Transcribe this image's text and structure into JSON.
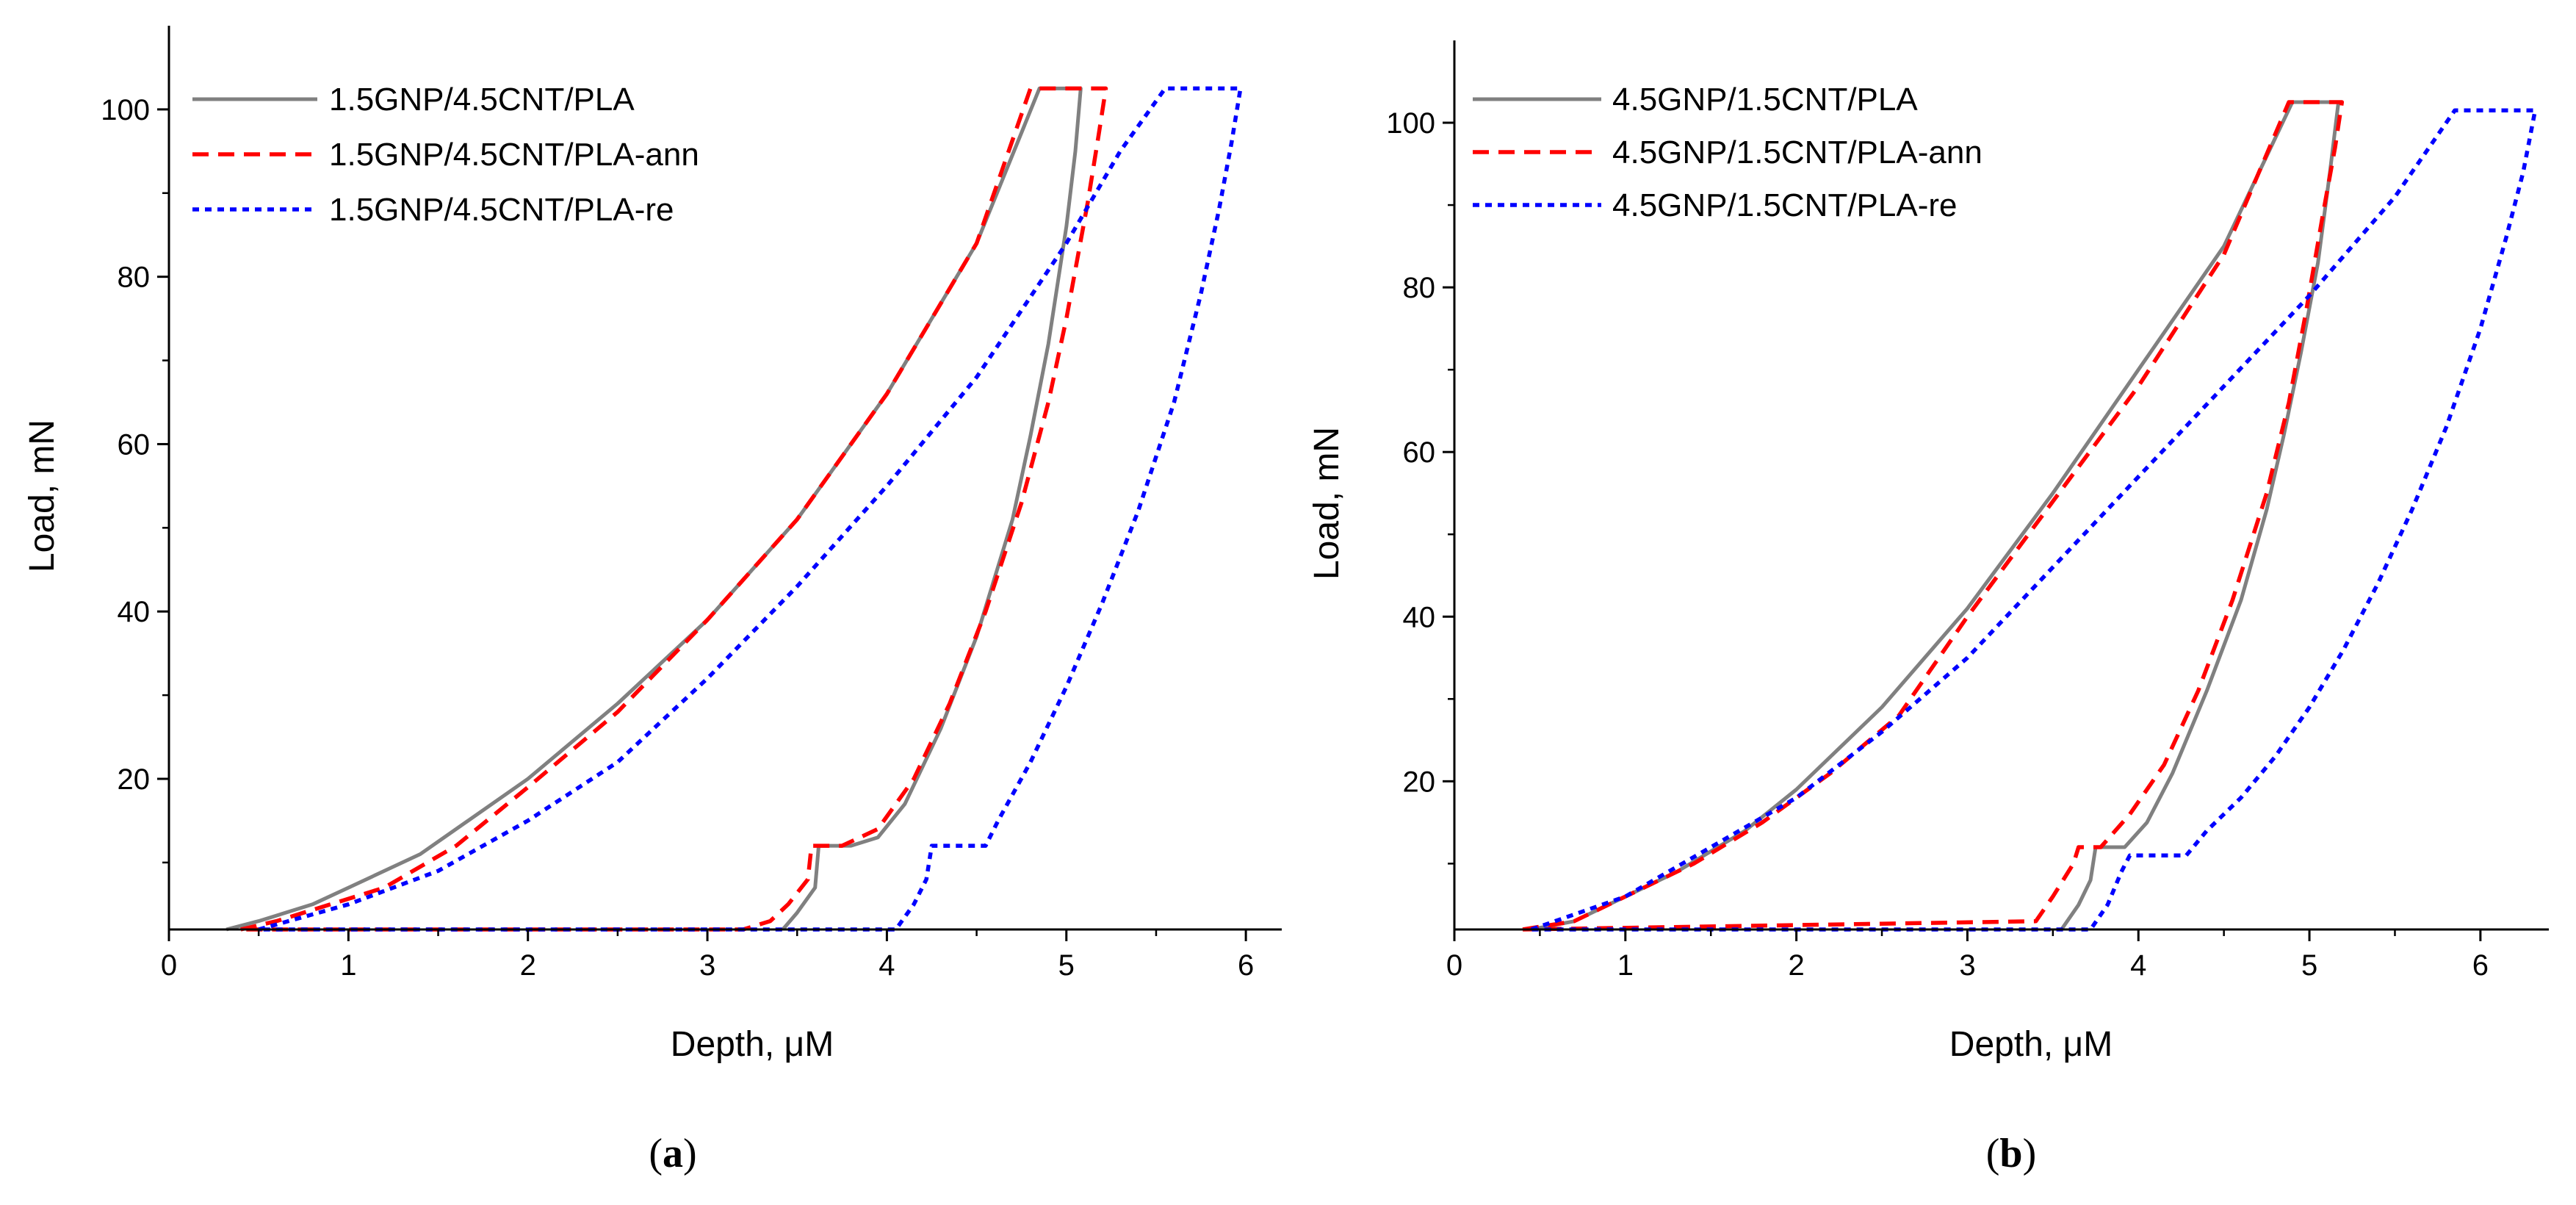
{
  "chart_data": [
    {
      "type": "line",
      "caption": {
        "prefix": "(",
        "letter": "a",
        "suffix": ")"
      },
      "xlabel": "Depth, μM",
      "ylabel": "Load, mN",
      "xlim": [
        0,
        6.2
      ],
      "ylim": [
        2,
        110
      ],
      "xticks": [
        0,
        1,
        2,
        3,
        4,
        5,
        6
      ],
      "yticks": [
        20,
        40,
        60,
        80,
        100
      ],
      "grid": false,
      "legend_position": "top-left",
      "series": [
        {
          "name": "1.5GNP/4.5CNT/PLA",
          "color": "#808080",
          "dash": "solid",
          "x": [
            0.32,
            0.5,
            0.8,
            1.0,
            1.4,
            2.0,
            2.5,
            3.0,
            3.5,
            4.0,
            4.5,
            4.85,
            5.08,
            5.05,
            5.0,
            4.9,
            4.8,
            4.7,
            4.5,
            4.3,
            4.1,
            3.95,
            3.8,
            3.62,
            3.6,
            3.5,
            3.42
          ],
          "y": [
            2,
            3,
            5,
            7,
            11,
            20,
            29,
            39,
            51,
            66,
            84,
            102.5,
            102.5,
            95,
            86,
            72,
            61,
            51,
            37,
            26,
            17,
            13,
            12,
            12,
            7,
            4,
            2
          ]
        },
        {
          "name": "1.5GNP/4.5CNT/PLA-ann",
          "color": "#ff0000",
          "dash": "22,13",
          "x": [
            0.4,
            0.6,
            0.9,
            1.2,
            1.6,
            2.0,
            2.5,
            3.0,
            3.5,
            4.0,
            4.5,
            4.8,
            5.13,
            5.22,
            5.18,
            5.12,
            5.0,
            4.9,
            4.75,
            4.55,
            4.35,
            4.15,
            3.95,
            3.75,
            3.58,
            3.56,
            3.45,
            3.35,
            3.2,
            0.4
          ],
          "y": [
            2,
            3,
            5,
            7,
            12,
            19,
            28,
            39,
            51,
            66,
            84,
            102.5,
            102.5,
            102.5,
            97,
            89,
            75,
            65,
            53,
            40,
            29,
            20,
            14,
            12,
            12,
            8,
            5,
            3,
            2,
            2
          ]
        },
        {
          "name": "1.5GNP/4.5CNT/PLA-re",
          "color": "#0000ff",
          "dash": "9,8",
          "x": [
            0.5,
            1.0,
            1.5,
            2.0,
            2.5,
            3.0,
            3.5,
            4.0,
            4.5,
            5.0,
            5.3,
            5.55,
            5.97,
            5.92,
            5.85,
            5.75,
            5.6,
            5.4,
            5.2,
            5.0,
            4.8,
            4.62,
            4.55,
            4.5,
            4.25,
            4.22,
            4.15,
            4.05,
            0.5
          ],
          "y": [
            2,
            5,
            9,
            15,
            22,
            32,
            43,
            55,
            68,
            84,
            95,
            102.5,
            102.5,
            96,
            88,
            78,
            65,
            52,
            41,
            31,
            22,
            15,
            12,
            12,
            12,
            8,
            5,
            2,
            2
          ]
        }
      ]
    },
    {
      "type": "line",
      "caption": {
        "prefix": "(",
        "letter": "b",
        "suffix": ")"
      },
      "xlabel": "Depth, μM",
      "ylabel": "Load, mN",
      "xlim": [
        0,
        6.4
      ],
      "ylim": [
        2,
        110
      ],
      "xticks": [
        0,
        1,
        2,
        3,
        4,
        5,
        6
      ],
      "yticks": [
        20,
        40,
        60,
        80,
        100
      ],
      "grid": false,
      "legend_position": "top-left",
      "series": [
        {
          "name": "4.5GNP/1.5CNT/PLA",
          "color": "#808080",
          "dash": "solid",
          "x": [
            0.45,
            0.7,
            1.0,
            1.3,
            1.7,
            2.0,
            2.5,
            3.0,
            3.5,
            4.0,
            4.5,
            4.9,
            5.17,
            5.12,
            5.05,
            4.95,
            4.85,
            4.75,
            4.6,
            4.4,
            4.2,
            4.05,
            3.92,
            3.75,
            3.72,
            3.65,
            3.55
          ],
          "y": [
            2,
            3,
            6,
            9,
            14,
            19,
            29,
            41,
            55,
            70,
            85,
            102.5,
            102.5,
            94,
            83,
            72,
            62,
            53,
            42,
            31,
            21,
            15,
            12,
            12,
            8,
            5,
            2
          ]
        },
        {
          "name": "4.5GNP/1.5CNT/PLA-ann",
          "color": "#ff0000",
          "dash": "22,13",
          "x": [
            0.4,
            0.7,
            1.0,
            1.4,
            1.8,
            2.2,
            2.6,
            3.0,
            3.5,
            4.0,
            4.5,
            4.88,
            5.1,
            5.19,
            5.15,
            5.08,
            4.98,
            4.88,
            4.75,
            4.55,
            4.35,
            4.15,
            3.95,
            3.78,
            3.65,
            3.62,
            3.5,
            3.4,
            0.4
          ],
          "y": [
            2,
            3,
            6,
            10,
            15,
            21,
            28,
            40,
            54,
            68,
            84,
            102.5,
            102.5,
            102.5,
            97,
            89,
            77,
            66,
            55,
            42,
            31,
            22,
            16,
            12,
            12,
            10,
            6,
            3,
            2
          ]
        },
        {
          "name": "4.5GNP/1.5CNT/PLA-re",
          "color": "#0000ff",
          "dash": "9,8",
          "x": [
            0.45,
            1.0,
            1.5,
            2.0,
            2.5,
            3.0,
            3.5,
            4.0,
            4.5,
            5.0,
            5.5,
            5.85,
            6.32,
            6.25,
            6.15,
            6.0,
            5.8,
            5.6,
            5.4,
            5.2,
            5.0,
            4.8,
            4.6,
            4.4,
            4.28,
            4.25,
            3.95,
            3.9,
            3.82,
            3.72,
            0.45
          ],
          "y": [
            2,
            6,
            12,
            18,
            26,
            35,
            46,
            57,
            68,
            79,
            91,
            101.5,
            101.5,
            94,
            86,
            75,
            63,
            53,
            44,
            36,
            29,
            23,
            18,
            14,
            11,
            11,
            11,
            9,
            5,
            2,
            2
          ]
        }
      ]
    }
  ]
}
